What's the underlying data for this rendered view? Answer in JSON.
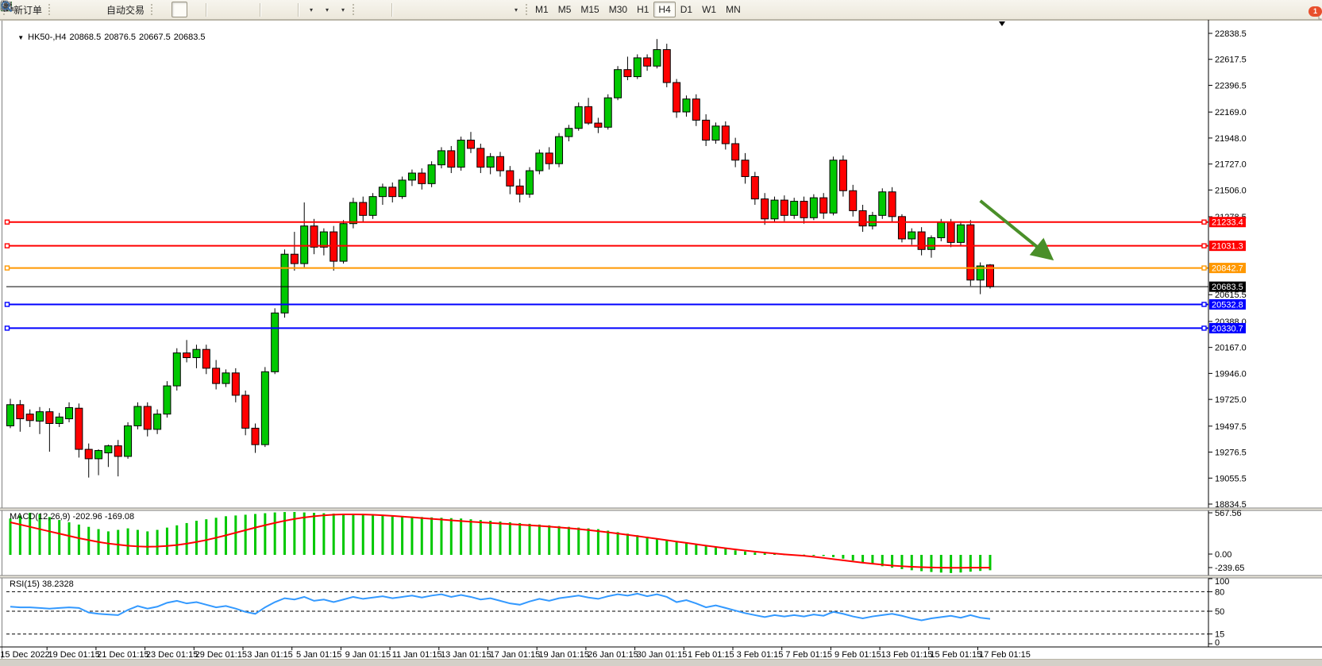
{
  "toolbar": {
    "new_order_label": "新订单",
    "auto_trading_label": "自动交易",
    "timeframes": [
      "M1",
      "M5",
      "M15",
      "M30",
      "H1",
      "H4",
      "D1",
      "W1",
      "MN"
    ],
    "selected_timeframe": "H4",
    "notification_badge": "1"
  },
  "chart": {
    "title": {
      "symbol_period": "HK50-,H4",
      "open": "20868.5",
      "high": "20876.5",
      "low": "20667.5",
      "close": "20683.5"
    },
    "macd_label": "MACD(12,26,9) -202.96 -169.08",
    "rsi_label": "RSI(15) 38.2328",
    "price_axis_ticks": [
      {
        "label": "22838.5",
        "price": 22838.5
      },
      {
        "label": "22617.5",
        "price": 22617.5
      },
      {
        "label": "22396.5",
        "price": 22396.5
      },
      {
        "label": "22169.0",
        "price": 22169.0
      },
      {
        "label": "21948.0",
        "price": 21948.0
      },
      {
        "label": "21727.0",
        "price": 21727.0
      },
      {
        "label": "21506.0",
        "price": 21506.0
      },
      {
        "label": "21278.5",
        "price": 21278.5
      },
      {
        "label": "20615.5",
        "price": 20615.5
      },
      {
        "label": "20388.0",
        "price": 20388.0
      },
      {
        "label": "20167.0",
        "price": 20167.0
      },
      {
        "label": "19946.0",
        "price": 19946.0
      },
      {
        "label": "19725.0",
        "price": 19725.0
      },
      {
        "label": "19497.5",
        "price": 19497.5
      },
      {
        "label": "19276.5",
        "price": 19276.5
      },
      {
        "label": "19055.5",
        "price": 19055.5
      },
      {
        "label": "18834.5",
        "price": 18834.5
      }
    ],
    "macd_axis_labels": [
      "567.56",
      "0.00",
      "-239.65"
    ],
    "rsi_axis_labels": [
      "100",
      "80",
      "50",
      "15",
      "0"
    ]
  },
  "chart_data": {
    "type": "candlestick",
    "symbol": "HK50-",
    "period": "H4",
    "last_bar": {
      "open": 20868.5,
      "high": 20876.5,
      "low": 20667.5,
      "close": 20683.5
    },
    "colors": {
      "up": "#00c800",
      "down": "#ff0000",
      "outline": "#000000",
      "macd_hist": "#00c800",
      "macd_line": "#ff0000",
      "rsi_line": "#3399ff",
      "arrow": "#4a8f29"
    },
    "price_axis_range": [
      18800,
      22955
    ],
    "x_labels": [
      "15 Dec 2022",
      "19 Dec 01:15",
      "21 Dec 01:15",
      "23 Dec 01:15",
      "29 Dec 01:15",
      "3 Jan 01:15",
      "5 Jan 01:15",
      "9 Jan 01:15",
      "11 Jan 01:15",
      "13 Jan 01:15",
      "17 Jan 01:15",
      "19 Jan 01:15",
      "26 Jan 01:15",
      "30 Jan 01:15",
      "1 Feb 01:15",
      "3 Feb 01:15",
      "7 Feb 01:15",
      "9 Feb 01:15",
      "13 Feb 01:15",
      "15 Feb 01:15",
      "17 Feb 01:15"
    ],
    "horizontal_lines": [
      {
        "label": "21233.4",
        "price": 21233.4,
        "color": "#ff0000",
        "width": 2,
        "handles": true
      },
      {
        "label": "21031.3",
        "price": 21031.3,
        "color": "#ff0000",
        "width": 2,
        "handles": true
      },
      {
        "label": "20842.7",
        "price": 20842.7,
        "color": "#ff9800",
        "width": 2,
        "handles": true
      },
      {
        "label": "20683.5",
        "price": 20683.5,
        "color": "#000000",
        "width": 1,
        "handles": false
      },
      {
        "label": "20532.8",
        "price": 20532.8,
        "color": "#0000ff",
        "width": 2,
        "handles": true
      },
      {
        "label": "20330.7",
        "price": 20330.7,
        "color": "#0000ff",
        "width": 2,
        "handles": true
      }
    ],
    "candles": [
      [
        19500,
        19730,
        19480,
        19680
      ],
      [
        19680,
        19720,
        19450,
        19560
      ],
      [
        19600,
        19640,
        19490,
        19545
      ],
      [
        19540,
        19660,
        19430,
        19620
      ],
      [
        19620,
        19650,
        19280,
        19520
      ],
      [
        19520,
        19610,
        19490,
        19575
      ],
      [
        19560,
        19700,
        19530,
        19655
      ],
      [
        19650,
        19690,
        19230,
        19300
      ],
      [
        19300,
        19350,
        19060,
        19220
      ],
      [
        19220,
        19300,
        19080,
        19290
      ],
      [
        19270,
        19340,
        19150,
        19330
      ],
      [
        19330,
        19380,
        19070,
        19240
      ],
      [
        19240,
        19530,
        19220,
        19500
      ],
      [
        19500,
        19700,
        19470,
        19665
      ],
      [
        19665,
        19700,
        19410,
        19470
      ],
      [
        19470,
        19640,
        19430,
        19600
      ],
      [
        19600,
        19880,
        19570,
        19840
      ],
      [
        19840,
        20160,
        19800,
        20120
      ],
      [
        20120,
        20230,
        20040,
        20080
      ],
      [
        20080,
        20190,
        19990,
        20150
      ],
      [
        20150,
        20190,
        19940,
        19990
      ],
      [
        19990,
        20060,
        19810,
        19860
      ],
      [
        19860,
        19980,
        19830,
        19950
      ],
      [
        19950,
        19990,
        19700,
        19760
      ],
      [
        19760,
        19800,
        19420,
        19480
      ],
      [
        19480,
        19520,
        19270,
        19340
      ],
      [
        19340,
        20000,
        19320,
        19960
      ],
      [
        19960,
        20500,
        19940,
        20460
      ],
      [
        20460,
        21000,
        20420,
        20960
      ],
      [
        20960,
        21150,
        20820,
        20880
      ],
      [
        20880,
        21400,
        20850,
        21200
      ],
      [
        21200,
        21260,
        20960,
        21020
      ],
      [
        21020,
        21180,
        20950,
        21150
      ],
      [
        21150,
        21200,
        20820,
        20900
      ],
      [
        20900,
        21250,
        20880,
        21220
      ],
      [
        21220,
        21440,
        21180,
        21400
      ],
      [
        21400,
        21450,
        21230,
        21290
      ],
      [
        21290,
        21480,
        21260,
        21450
      ],
      [
        21450,
        21560,
        21380,
        21530
      ],
      [
        21530,
        21570,
        21400,
        21450
      ],
      [
        21450,
        21620,
        21430,
        21590
      ],
      [
        21590,
        21680,
        21540,
        21650
      ],
      [
        21650,
        21690,
        21510,
        21560
      ],
      [
        21560,
        21750,
        21530,
        21720
      ],
      [
        21720,
        21870,
        21690,
        21840
      ],
      [
        21840,
        21880,
        21650,
        21700
      ],
      [
        21700,
        21960,
        21670,
        21930
      ],
      [
        21930,
        22000,
        21820,
        21860
      ],
      [
        21860,
        21900,
        21650,
        21700
      ],
      [
        21700,
        21820,
        21640,
        21790
      ],
      [
        21790,
        21830,
        21620,
        21670
      ],
      [
        21670,
        21710,
        21470,
        21540
      ],
      [
        21540,
        21600,
        21400,
        21470
      ],
      [
        21470,
        21700,
        21440,
        21670
      ],
      [
        21670,
        21850,
        21640,
        21820
      ],
      [
        21820,
        21870,
        21680,
        21730
      ],
      [
        21730,
        21990,
        21700,
        21960
      ],
      [
        21960,
        22060,
        21920,
        22030
      ],
      [
        22030,
        22250,
        22010,
        22215
      ],
      [
        22215,
        22290,
        22060,
        22075
      ],
      [
        22075,
        22120,
        21990,
        22040
      ],
      [
        22040,
        22320,
        22020,
        22290
      ],
      [
        22290,
        22560,
        22270,
        22530
      ],
      [
        22530,
        22640,
        22440,
        22470
      ],
      [
        22470,
        22660,
        22450,
        22630
      ],
      [
        22630,
        22660,
        22520,
        22560
      ],
      [
        22560,
        22790,
        22540,
        22700
      ],
      [
        22700,
        22750,
        22380,
        22420
      ],
      [
        22420,
        22450,
        22120,
        22170
      ],
      [
        22170,
        22310,
        22130,
        22280
      ],
      [
        22280,
        22320,
        22050,
        22100
      ],
      [
        22100,
        22150,
        21880,
        21930
      ],
      [
        21930,
        22080,
        21900,
        22050
      ],
      [
        22050,
        22090,
        21850,
        21900
      ],
      [
        21900,
        21950,
        21700,
        21760
      ],
      [
        21760,
        21820,
        21560,
        21620
      ],
      [
        21620,
        21660,
        21380,
        21430
      ],
      [
        21430,
        21480,
        21210,
        21260
      ],
      [
        21260,
        21450,
        21230,
        21420
      ],
      [
        21420,
        21460,
        21240,
        21290
      ],
      [
        21290,
        21440,
        21260,
        21410
      ],
      [
        21410,
        21450,
        21220,
        21270
      ],
      [
        21270,
        21470,
        21250,
        21440
      ],
      [
        21440,
        21480,
        21260,
        21310
      ],
      [
        21310,
        21790,
        21290,
        21760
      ],
      [
        21760,
        21800,
        21450,
        21500
      ],
      [
        21500,
        21550,
        21280,
        21330
      ],
      [
        21330,
        21380,
        21150,
        21200
      ],
      [
        21200,
        21320,
        21170,
        21290
      ],
      [
        21290,
        21520,
        21260,
        21490
      ],
      [
        21490,
        21530,
        21230,
        21280
      ],
      [
        21280,
        21300,
        21060,
        21090
      ],
      [
        21090,
        21180,
        21040,
        21150
      ],
      [
        21150,
        21190,
        20950,
        21000
      ],
      [
        21000,
        21120,
        20930,
        21100
      ],
      [
        21100,
        21260,
        21070,
        21230
      ],
      [
        21230,
        21260,
        21020,
        21060
      ],
      [
        21060,
        21240,
        21030,
        21210
      ],
      [
        21210,
        21250,
        20690,
        20740
      ],
      [
        20740,
        20890,
        20620,
        20860
      ],
      [
        20868.5,
        20876.5,
        20667.5,
        20683.5
      ]
    ],
    "indicators": {
      "macd": {
        "name": "MACD(12,26,9)",
        "value": -202.96,
        "signal_value": -169.08,
        "scale": {
          "max": 567.56,
          "zero": 0.0,
          "min": -239.65
        },
        "histogram": [
          480,
          520,
          555,
          540,
          500,
          460,
          430,
          400,
          370,
          340,
          310,
          330,
          350,
          330,
          310,
          330,
          360,
          390,
          420,
          450,
          470,
          490,
          510,
          520,
          530,
          540,
          550,
          560,
          565,
          567,
          560,
          555,
          550,
          545,
          540,
          535,
          530,
          525,
          520,
          515,
          510,
          505,
          500,
          495,
          490,
          485,
          480,
          470,
          460,
          450,
          440,
          430,
          420,
          410,
          400,
          390,
          380,
          370,
          360,
          350,
          340,
          320,
          300,
          280,
          260,
          240,
          220,
          200,
          180,
          160,
          140,
          120,
          100,
          80,
          60,
          45,
          30,
          20,
          12,
          8,
          5,
          3,
          -5,
          -15,
          -30,
          -50,
          -75,
          -100,
          -125,
          -150,
          -170,
          -188,
          -203,
          -215,
          -226,
          -234,
          -239.65,
          -233,
          -222,
          -212,
          -202.96
        ],
        "signal": [
          430,
          400,
          370,
          340,
          310,
          280,
          250,
          220,
          195,
          170,
          150,
          135,
          120,
          112,
          108,
          110,
          118,
          130,
          148,
          170,
          196,
          226,
          258,
          292,
          326,
          360,
          392,
          422,
          450,
          474,
          494,
          510,
          522,
          530,
          534,
          535,
          533,
          529,
          523,
          515,
          506,
          496,
          486,
          476,
          466,
          456,
          447,
          438,
          430,
          422,
          414,
          406,
          398,
          390,
          382,
          373,
          363,
          352,
          340,
          327,
          313,
          298,
          282,
          265,
          248,
          230,
          212,
          194,
          176,
          158,
          140,
          122,
          105,
          88,
          72,
          57,
          43,
          30,
          18,
          7,
          -3,
          -12,
          -25,
          -40,
          -56,
          -72,
          -88,
          -103,
          -117,
          -130,
          -141,
          -150,
          -157,
          -163,
          -167,
          -169,
          -170,
          -170,
          -169.5,
          -169.2,
          -169.08
        ]
      },
      "rsi": {
        "name": "RSI(15)",
        "value": 38.2328,
        "levels": [
          80,
          50,
          15
        ],
        "range": [
          0,
          100
        ],
        "values": [
          57,
          56,
          56,
          55,
          54,
          55,
          56,
          55,
          48,
          46,
          45,
          44,
          52,
          58,
          54,
          57,
          63,
          66,
          62,
          64,
          60,
          56,
          58,
          54,
          49,
          46,
          56,
          64,
          70,
          68,
          72,
          66,
          68,
          64,
          68,
          72,
          69,
          71,
          73,
          70,
          72,
          74,
          71,
          74,
          76,
          72,
          75,
          72,
          68,
          70,
          66,
          62,
          60,
          65,
          69,
          66,
          70,
          72,
          74,
          71,
          69,
          73,
          76,
          74,
          77,
          73,
          76,
          72,
          64,
          67,
          62,
          56,
          59,
          55,
          51,
          47,
          44,
          41,
          44,
          42,
          44,
          42,
          45,
          43,
          49,
          46,
          42,
          39,
          42,
          44,
          46,
          43,
          39,
          36,
          39,
          41,
          43,
          40,
          44,
          40,
          38.23
        ]
      }
    },
    "annotation_arrow": {
      "from_index": 99,
      "from_price": 21414,
      "to_index": 106,
      "to_price": 20941
    }
  }
}
